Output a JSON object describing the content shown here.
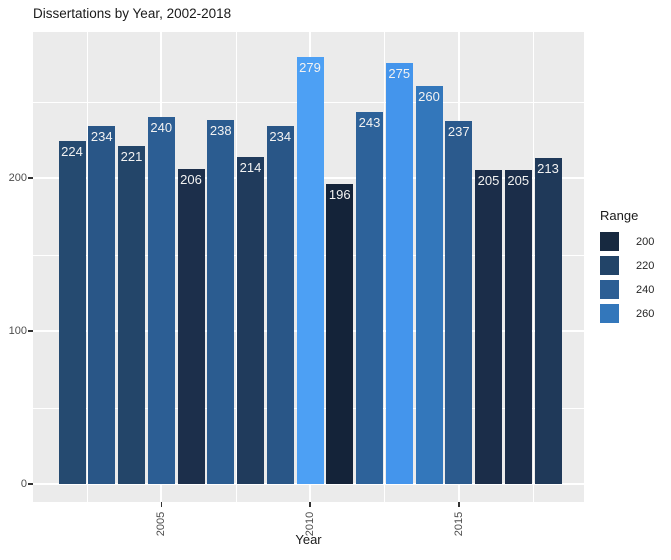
{
  "chart_data": {
    "type": "bar",
    "title": "Dissertations by Year, 2002-2018",
    "xlabel": "Year",
    "ylabel": "",
    "categories": [
      2002,
      2003,
      2004,
      2005,
      2006,
      2007,
      2008,
      2009,
      2010,
      2011,
      2012,
      2013,
      2014,
      2015,
      2016,
      2017,
      2018
    ],
    "values": [
      224,
      234,
      221,
      240,
      206,
      238,
      214,
      234,
      279,
      196,
      243,
      275,
      260,
      237,
      205,
      205,
      213
    ],
    "bar_colors": [
      "#254a70",
      "#295687",
      "#234569",
      "#2c5e94",
      "#1c2f4b",
      "#2b5c90",
      "#203b5c",
      "#295687",
      "#4da0f4",
      "#142339",
      "#2d629a",
      "#4495ec",
      "#3377bb",
      "#2b5a8d",
      "#1b2d49",
      "#1b2d49",
      "#1f3959"
    ],
    "bar_label_color": "#f2f2f2",
    "x_major_ticks": [
      2005,
      2010,
      2015
    ],
    "x_minor_ticks": [
      2002.5,
      2007.5,
      2012.5,
      2017.5
    ],
    "y_major_ticks": [
      0,
      100,
      200
    ],
    "y_minor_ticks": [
      50,
      150,
      250
    ],
    "ylim": [
      -14,
      293
    ],
    "grid": true,
    "panel_background": "#ebebeb",
    "grid_color": "#ffffff",
    "legend": {
      "position": "right",
      "title": "Range",
      "entries": [
        {
          "label": "200",
          "color": "#172940"
        },
        {
          "label": "220",
          "color": "#224468"
        },
        {
          "label": "240",
          "color": "#2c5e94"
        },
        {
          "label": "260",
          "color": "#3377bb"
        }
      ]
    }
  }
}
